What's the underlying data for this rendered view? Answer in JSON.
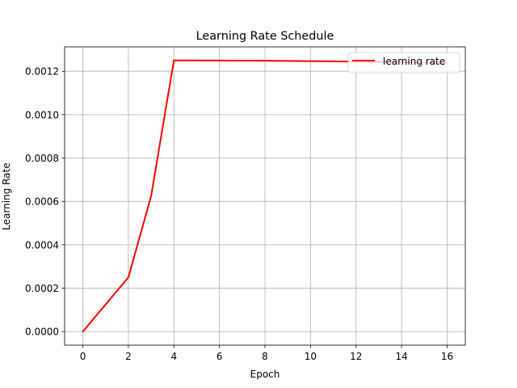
{
  "chart_data": {
    "type": "line",
    "title": "Learning Rate Schedule",
    "xlabel": "Epoch",
    "ylabel": "Learning Rate",
    "xlim": [
      -0.8,
      16.8
    ],
    "ylim": [
      -6.25e-05,
      0.0013125
    ],
    "x_ticks": [
      0,
      2,
      4,
      6,
      8,
      10,
      12,
      14,
      16
    ],
    "x_tick_labels": [
      "0",
      "2",
      "4",
      "6",
      "8",
      "10",
      "12",
      "14",
      "16"
    ],
    "y_ticks": [
      0,
      0.0002,
      0.0004,
      0.0006,
      0.0008,
      0.001,
      0.0012
    ],
    "y_tick_labels": [
      "0.0000",
      "0.0002",
      "0.0004",
      "0.0006",
      "0.0008",
      "0.0010",
      "0.0012"
    ],
    "grid": true,
    "legend_position": "upper right",
    "series": [
      {
        "name": "learning rate",
        "color": "#ff0000",
        "x": [
          0,
          1,
          2,
          3,
          4,
          5,
          6,
          7,
          8,
          9,
          10,
          11,
          12,
          13,
          14,
          15,
          16
        ],
        "y": [
          0,
          0.000125,
          0.00025,
          0.000625,
          0.00125,
          0.0012499,
          0.0012496,
          0.0012492,
          0.0012486,
          0.0012478,
          0.0012469,
          0.0012459,
          0.0012447,
          0.0012433,
          0.0012418,
          0.0012402,
          0.0012384
        ]
      }
    ]
  }
}
